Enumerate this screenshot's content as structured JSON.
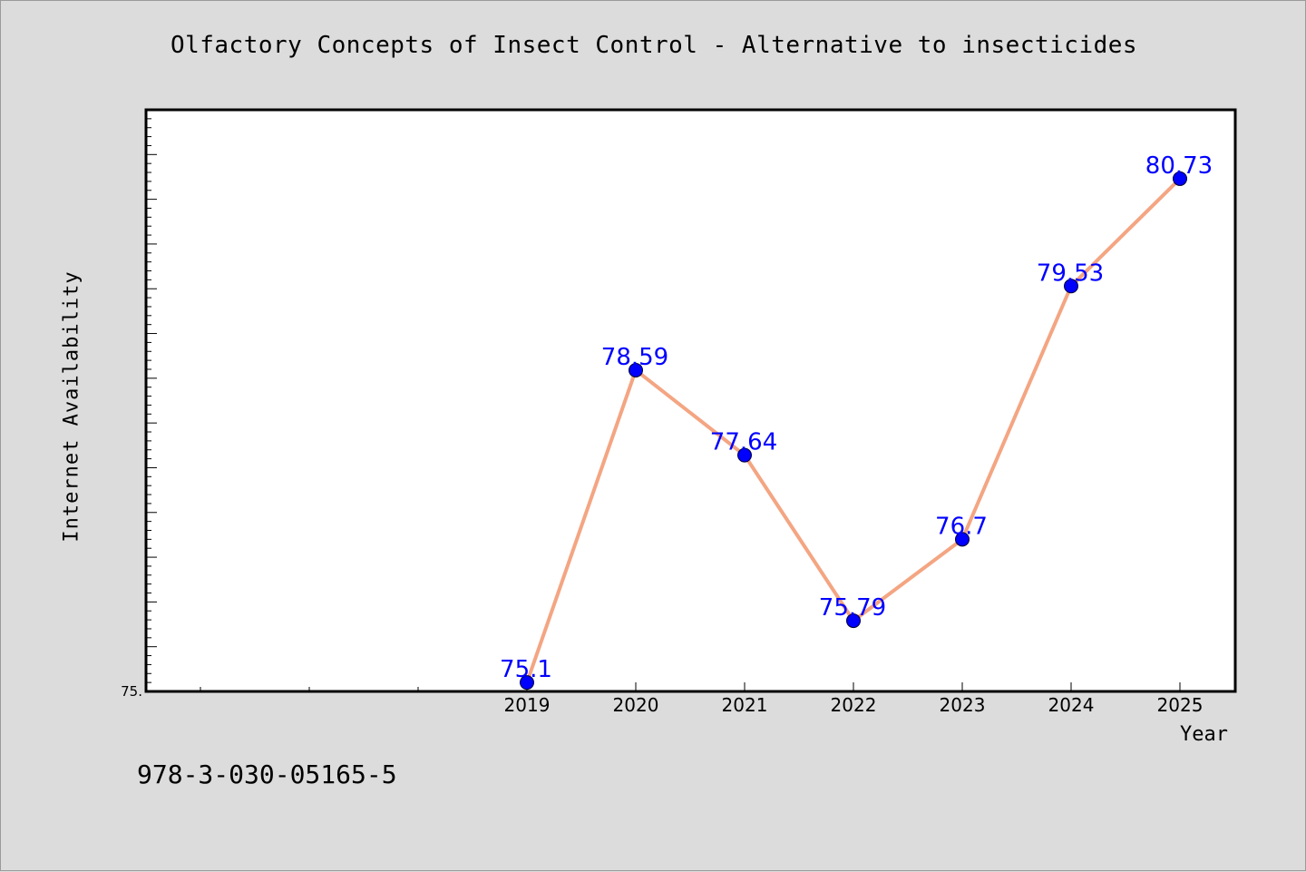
{
  "chart_data": {
    "type": "line",
    "title": "Olfactory Concepts of Insect Control - Alternative to insecticides",
    "xlabel": "Year",
    "ylabel": "Internet Availability",
    "categories": [
      "2019",
      "2020",
      "2021",
      "2022",
      "2023",
      "2024",
      "2025"
    ],
    "series": [
      {
        "values": [
          75.1,
          78.59,
          77.64,
          75.79,
          76.7,
          79.53,
          80.73
        ],
        "data_labels": [
          "75.1",
          "78.59",
          "77.64",
          "75.79",
          "76.7",
          "79.53",
          "80.73"
        ],
        "line_color": "#f4a582",
        "marker_color": "#0000ff",
        "label_color": "#0000ff"
      }
    ],
    "ylim": [
      75,
      81.5
    ],
    "y_tick_labels": [
      {
        "value": 75,
        "label": "75."
      }
    ],
    "y_minor_step": 0.1,
    "y_major_step": 0.5,
    "grid": false,
    "background": "#ffffff"
  },
  "footer": {
    "text": "978-3-030-05165-5"
  },
  "colors": {
    "figure_background": "#dcdcdc",
    "axes_frame": "#000000"
  }
}
